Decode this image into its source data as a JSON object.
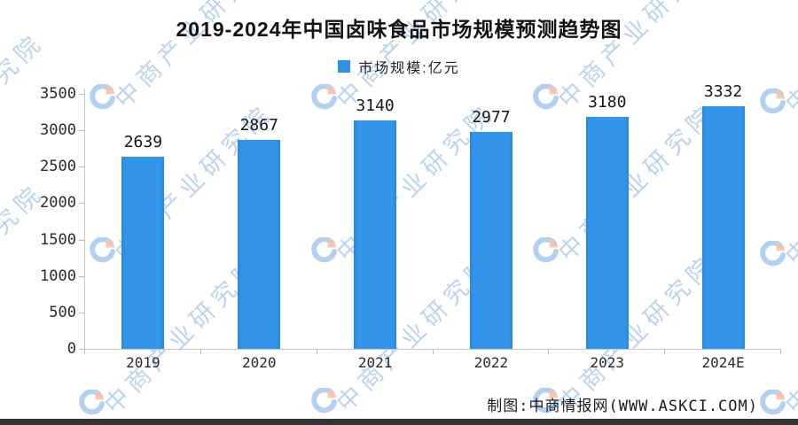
{
  "watermark": {
    "text": "中商产业研究院"
  },
  "chart_data": {
    "type": "bar",
    "title": "2019-2024年中国卤味食品市场规模预测趋势图",
    "legend_label": "市场规模:亿元",
    "series_name": "市场规模",
    "unit": "亿元",
    "categories": [
      "2019",
      "2020",
      "2021",
      "2022",
      "2023",
      "2024E"
    ],
    "values": [
      2639,
      2867,
      3140,
      2977,
      3180,
      3332
    ],
    "ylim": [
      0,
      3500
    ],
    "yticks": [
      0,
      500,
      1000,
      1500,
      2000,
      2500,
      3000,
      3500
    ],
    "grid": false,
    "legend_position": "top-center",
    "value_labels": true,
    "bar_color": "#2F92E8"
  },
  "source_note": "制图:中商情报网(WWW.ASKCI.COM)"
}
